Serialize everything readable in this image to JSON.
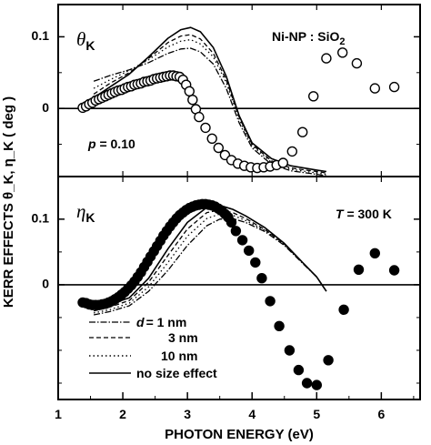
{
  "chart_data": {
    "type": "line",
    "xlabel": "PHOTON  ENERGY  (eV)",
    "ylabel": "KERR EFFECTS θ_K, η_K ( deg )",
    "xlim": [
      1.0,
      6.6
    ],
    "x_ticks": [
      "1",
      "2",
      "3",
      "4",
      "5",
      "6"
    ],
    "legend": {
      "placement": "bottom-left",
      "entries": [
        {
          "style": "dash-dot",
          "label_prefix": "d",
          "label": "= 1 nm"
        },
        {
          "style": "dashed",
          "label": "3 nm"
        },
        {
          "style": "dotted",
          "label": "10 nm"
        },
        {
          "style": "solid",
          "label": "no size effect"
        }
      ]
    },
    "panels": [
      {
        "symbol": "θ",
        "subscript": "K",
        "sample_label": "Ni-NP : SiO",
        "sample_sub": "2",
        "annotation_var": "p",
        "annotation_value": " = 0.10",
        "ylim": [
          -0.095,
          0.145
        ],
        "y_ticks": [
          "0.1",
          "0"
        ],
        "markers": "open-circle",
        "experiment": {
          "x": [
            1.38,
            1.43,
            1.48,
            1.53,
            1.58,
            1.63,
            1.68,
            1.73,
            1.78,
            1.83,
            1.88,
            1.93,
            1.98,
            2.03,
            2.08,
            2.13,
            2.18,
            2.23,
            2.28,
            2.33,
            2.38,
            2.43,
            2.48,
            2.53,
            2.58,
            2.63,
            2.68,
            2.73,
            2.78,
            2.83,
            2.88,
            2.93,
            2.98,
            3.03,
            3.08,
            3.13,
            3.18,
            3.28,
            3.38,
            3.48,
            3.58,
            3.68,
            3.78,
            3.88,
            3.98,
            4.08,
            4.18,
            4.28,
            4.38,
            4.48,
            4.62,
            4.78,
            4.95,
            5.15,
            5.4,
            5.62,
            5.9,
            6.2
          ],
          "y": [
            0.001,
            0.003,
            0.006,
            0.008,
            0.011,
            0.013,
            0.015,
            0.017,
            0.019,
            0.021,
            0.023,
            0.025,
            0.026,
            0.028,
            0.03,
            0.031,
            0.033,
            0.034,
            0.035,
            0.037,
            0.038,
            0.039,
            0.041,
            0.042,
            0.043,
            0.044,
            0.045,
            0.046,
            0.046,
            0.045,
            0.044,
            0.04,
            0.033,
            0.024,
            0.012,
            -0.001,
            -0.012,
            -0.027,
            -0.042,
            -0.055,
            -0.065,
            -0.072,
            -0.077,
            -0.08,
            -0.082,
            -0.083,
            -0.082,
            -0.081,
            -0.079,
            -0.076,
            -0.06,
            -0.033,
            0.017,
            0.07,
            0.078,
            0.063,
            0.028,
            0.03
          ]
        },
        "curves": [
          {
            "style": "solid",
            "x": [
              1.55,
              1.8,
              2.1,
              2.4,
              2.7,
              2.9,
              3.05,
              3.2,
              3.4,
              3.6,
              3.8,
              4.0,
              4.3,
              4.6,
              5.0,
              5.15
            ],
            "y": [
              0.015,
              0.03,
              0.048,
              0.072,
              0.098,
              0.11,
              0.113,
              0.107,
              0.085,
              0.045,
              -0.01,
              -0.048,
              -0.07,
              -0.08,
              -0.086,
              -0.088
            ]
          },
          {
            "style": "dashed",
            "x": [
              1.55,
              1.8,
              2.1,
              2.4,
              2.7,
              2.9,
              3.05,
              3.2,
              3.4,
              3.6,
              3.8,
              4.0,
              4.3,
              4.6,
              5.0,
              5.15
            ],
            "y": [
              0.02,
              0.035,
              0.05,
              0.07,
              0.092,
              0.101,
              0.103,
              0.097,
              0.077,
              0.04,
              -0.012,
              -0.05,
              -0.073,
              -0.083,
              -0.088,
              -0.09
            ]
          },
          {
            "style": "dotted",
            "x": [
              1.55,
              1.8,
              2.1,
              2.4,
              2.7,
              2.9,
              3.05,
              3.2,
              3.4,
              3.6,
              3.8,
              4.0,
              4.3,
              4.6,
              5.0,
              5.15
            ],
            "y": [
              0.028,
              0.04,
              0.053,
              0.068,
              0.086,
              0.094,
              0.096,
              0.09,
              0.072,
              0.036,
              -0.015,
              -0.052,
              -0.075,
              -0.085,
              -0.09,
              -0.092
            ]
          },
          {
            "style": "dash-dot",
            "x": [
              1.55,
              1.8,
              2.1,
              2.4,
              2.7,
              2.9,
              3.05,
              3.2,
              3.4,
              3.6,
              3.8,
              4.0,
              4.3,
              4.6,
              5.0,
              5.15
            ],
            "y": [
              0.038,
              0.046,
              0.054,
              0.064,
              0.077,
              0.083,
              0.084,
              0.079,
              0.062,
              0.028,
              -0.02,
              -0.055,
              -0.078,
              -0.087,
              -0.092,
              -0.094
            ]
          }
        ]
      },
      {
        "symbol": "η",
        "subscript": "K",
        "annotation_var": "T",
        "annotation_value": " = 300 K",
        "ylim": [
          -0.175,
          0.165
        ],
        "y_ticks": [
          "0.1",
          "0"
        ],
        "markers": "filled-circle",
        "experiment": {
          "x": [
            1.38,
            1.43,
            1.48,
            1.53,
            1.58,
            1.63,
            1.68,
            1.73,
            1.78,
            1.83,
            1.88,
            1.93,
            1.98,
            2.03,
            2.08,
            2.13,
            2.18,
            2.23,
            2.28,
            2.33,
            2.38,
            2.43,
            2.48,
            2.53,
            2.58,
            2.63,
            2.68,
            2.73,
            2.78,
            2.83,
            2.88,
            2.93,
            2.98,
            3.03,
            3.08,
            3.13,
            3.18,
            3.23,
            3.28,
            3.33,
            3.38,
            3.43,
            3.48,
            3.53,
            3.58,
            3.63,
            3.68,
            3.75,
            3.85,
            3.95,
            4.05,
            4.15,
            4.28,
            4.42,
            4.58,
            4.72,
            4.85,
            5.0,
            5.18,
            5.42,
            5.65,
            5.9,
            6.2
          ],
          "y": [
            -0.027,
            -0.028,
            -0.03,
            -0.031,
            -0.031,
            -0.031,
            -0.03,
            -0.029,
            -0.027,
            -0.025,
            -0.022,
            -0.019,
            -0.015,
            -0.011,
            -0.006,
            -0.001,
            0.005,
            0.012,
            0.019,
            0.027,
            0.035,
            0.043,
            0.051,
            0.059,
            0.067,
            0.075,
            0.082,
            0.089,
            0.095,
            0.101,
            0.106,
            0.11,
            0.114,
            0.117,
            0.119,
            0.121,
            0.122,
            0.123,
            0.123,
            0.122,
            0.121,
            0.119,
            0.116,
            0.113,
            0.108,
            0.103,
            0.095,
            0.082,
            0.068,
            0.052,
            0.034,
            0.01,
            -0.025,
            -0.063,
            -0.1,
            -0.13,
            -0.15,
            -0.153,
            -0.115,
            -0.038,
            0.023,
            0.048,
            0.022
          ]
        },
        "curves": [
          {
            "style": "solid",
            "x": [
              1.55,
              1.8,
              2.1,
              2.4,
              2.7,
              3.0,
              3.3,
              3.5,
              3.7,
              3.9,
              4.2,
              4.5,
              4.8,
              5.0,
              5.15
            ],
            "y": [
              -0.035,
              -0.03,
              -0.02,
              0.01,
              0.055,
              0.095,
              0.118,
              0.121,
              0.115,
              0.105,
              0.087,
              0.063,
              0.032,
              0.012,
              -0.01
            ]
          },
          {
            "style": "dashed",
            "x": [
              1.55,
              1.8,
              2.1,
              2.4,
              2.7,
              3.0,
              3.3,
              3.5,
              3.7,
              3.9,
              4.2,
              4.5,
              4.8,
              5.0,
              5.15
            ],
            "y": [
              -0.04,
              -0.034,
              -0.024,
              0.004,
              0.045,
              0.085,
              0.11,
              0.114,
              0.11,
              0.101,
              0.084,
              0.062,
              0.032,
              0.012,
              -0.01
            ]
          },
          {
            "style": "dotted",
            "x": [
              1.55,
              1.8,
              2.1,
              2.4,
              2.7,
              3.0,
              3.3,
              3.5,
              3.7,
              3.9,
              4.2,
              4.5,
              4.8,
              5.0,
              5.15
            ],
            "y": [
              -0.043,
              -0.038,
              -0.028,
              -0.003,
              0.034,
              0.074,
              0.101,
              0.108,
              0.106,
              0.098,
              0.083,
              0.061,
              0.032,
              0.012,
              -0.01
            ]
          },
          {
            "style": "dash-dot",
            "x": [
              1.55,
              1.8,
              2.1,
              2.4,
              2.7,
              3.0,
              3.3,
              3.5,
              3.7,
              3.9,
              4.2,
              4.5,
              4.8,
              5.0,
              5.15
            ],
            "y": [
              -0.046,
              -0.041,
              -0.032,
              -0.01,
              0.022,
              0.06,
              0.09,
              0.1,
              0.101,
              0.095,
              0.081,
              0.06,
              0.031,
              0.012,
              -0.01
            ]
          }
        ]
      }
    ]
  }
}
